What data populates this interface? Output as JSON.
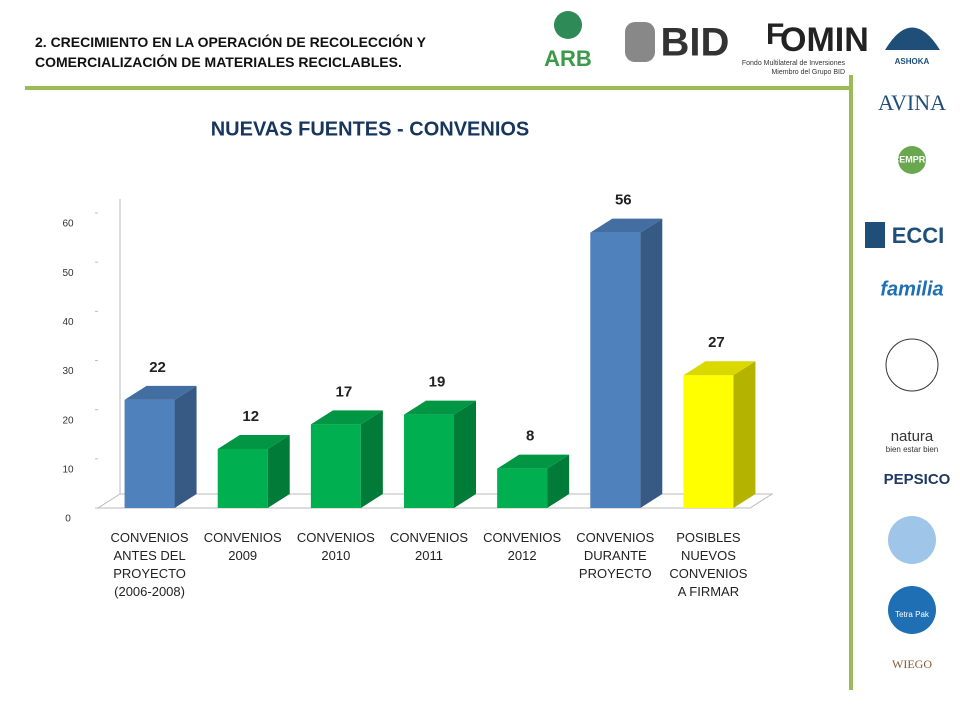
{
  "header": {
    "title_lines": [
      "2. CRECIMIENTO EN  LA OPERACIÓN DE  RECOLECCIÓN Y",
      "COMERCIALIZACIÓN DE MATERIALES RECICLABLES."
    ]
  },
  "logos": {
    "top": [
      "ARB",
      "BID",
      "OMIN",
      "Fondo Multilateral de Inversiones",
      "Miembro del Grupo BID"
    ],
    "side": [
      "ASHOKA",
      "AVINA",
      "CEMPRE",
      "ECCI",
      "familia",
      "natura",
      "bien estar bien",
      "PEPSICO",
      "Tetra Pak",
      "WIEGO"
    ]
  },
  "chart_data": {
    "type": "bar3d",
    "title": "NUEVAS FUENTES - CONVENIOS",
    "categories": [
      "CONVENIOS\nANTES DEL\nPROYECTO\n(2006-2008)",
      "CONVENIOS\n2009",
      "CONVENIOS\n2010",
      "CONVENIOS\n2011",
      "CONVENIOS\n2012",
      "CONVENIOS\nDURANTE\nPROYECTO",
      "POSIBLES\nNUEVOS\nCONVENIOS\nA FIRMAR"
    ],
    "values": [
      22,
      12,
      17,
      19,
      8,
      56,
      27
    ],
    "colors": [
      "#4f81bd",
      "#00b050",
      "#00b050",
      "#00b050",
      "#00b050",
      "#4f81bd",
      "#ffff00"
    ],
    "ylim": [
      0,
      60
    ],
    "yticks": [
      0,
      10,
      20,
      30,
      40,
      50,
      60
    ],
    "grid": false
  }
}
